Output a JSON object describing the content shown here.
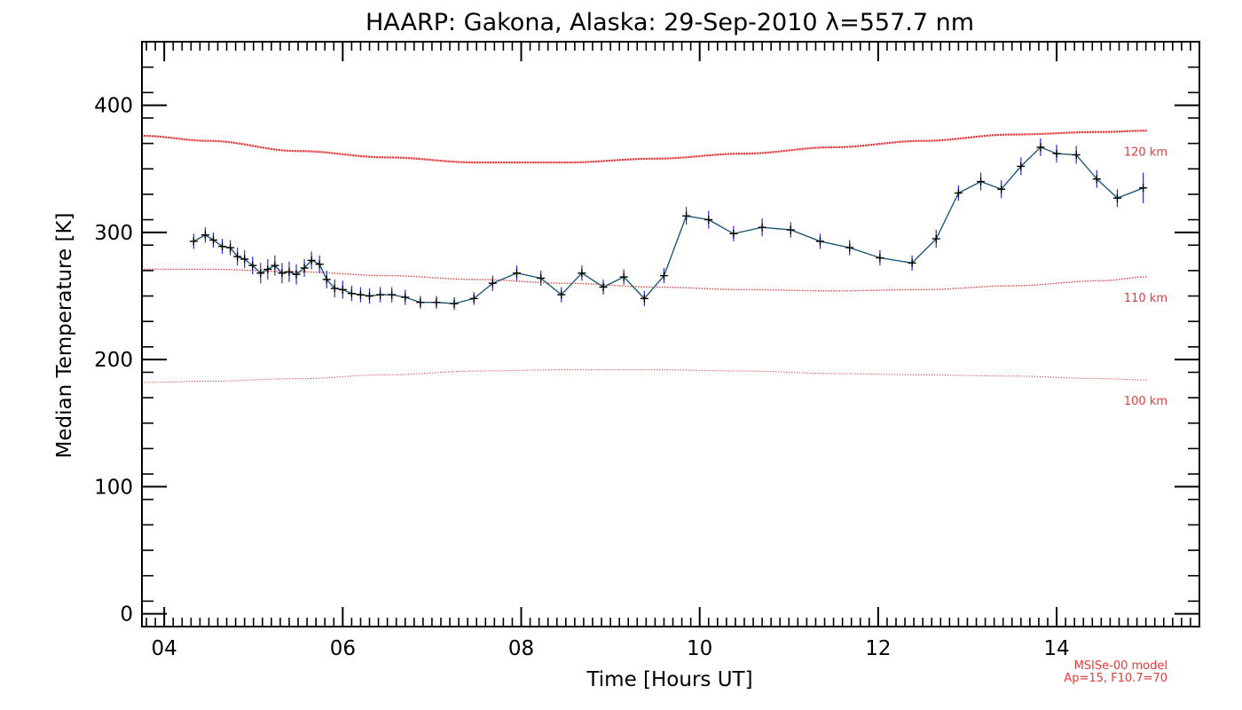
{
  "colors": {
    "model": "#e8383a",
    "data_line": "#1c5a78",
    "error_bar": "#2a2ad0",
    "marker": "#000000",
    "axis": "#000000"
  },
  "chart_data": {
    "type": "line",
    "title": "HAARP: Gakona,  Alaska: 29-Sep-2010 λ=557.7 nm",
    "xlabel": "Time [Hours UT]",
    "ylabel": "Median Temperature [K]",
    "xlim": [
      3.75,
      15.6
    ],
    "ylim": [
      -10,
      450
    ],
    "x_ticks": [
      4,
      6,
      8,
      10,
      12,
      14
    ],
    "x_tick_labels": [
      "04",
      "06",
      "08",
      "10",
      "12",
      "14"
    ],
    "y_ticks": [
      0,
      100,
      200,
      300,
      400
    ],
    "y_tick_labels": [
      "0",
      "100",
      "200",
      "300",
      "400"
    ],
    "grid": false,
    "model_note": [
      "MSISe-00 model",
      "Ap=15, F10.7=70"
    ],
    "series": [
      {
        "type": "line_with_errorbars",
        "x": [
          4.33,
          4.46,
          4.55,
          4.65,
          4.74,
          4.82,
          4.9,
          4.99,
          5.08,
          5.16,
          5.24,
          5.32,
          5.4,
          5.48,
          5.57,
          5.65,
          5.74,
          5.82,
          5.91,
          6.0,
          6.1,
          6.2,
          6.3,
          6.42,
          6.55,
          6.7,
          6.87,
          7.05,
          7.25,
          7.47,
          7.68,
          7.95,
          8.22,
          8.45,
          8.68,
          8.92,
          9.15,
          9.38,
          9.6,
          9.85,
          10.1,
          10.38,
          10.7,
          11.02,
          11.35,
          11.68,
          12.02,
          12.38,
          12.65,
          12.9,
          13.15,
          13.38,
          13.6,
          13.82,
          14.0,
          14.22,
          14.45,
          14.68,
          14.97
        ],
        "y": [
          293,
          298,
          294,
          289,
          288,
          281,
          279,
          274,
          268,
          271,
          274,
          268,
          269,
          267,
          272,
          278,
          275,
          263,
          256,
          255,
          252,
          251,
          250,
          251,
          251,
          249,
          245,
          245,
          244,
          248,
          260,
          268,
          264,
          251,
          268,
          257,
          265,
          248,
          266,
          313,
          310,
          299,
          304,
          302,
          293,
          288,
          280,
          276,
          295,
          331,
          340,
          334,
          352,
          367,
          362,
          361,
          342,
          327,
          335
        ],
        "err": [
          6,
          6,
          6,
          6,
          6,
          7,
          7,
          7,
          8,
          8,
          8,
          8,
          8,
          8,
          7,
          7,
          7,
          7,
          7,
          7,
          6,
          6,
          6,
          6,
          6,
          6,
          5,
          5,
          5,
          5,
          6,
          6,
          6,
          6,
          6,
          6,
          6,
          6,
          6,
          7,
          7,
          6,
          7,
          6,
          6,
          6,
          6,
          6,
          7,
          6,
          7,
          7,
          7,
          7,
          7,
          7,
          7,
          7,
          12
        ]
      },
      {
        "name": "120 km",
        "type": "model",
        "x": [
          3.75,
          4.5,
          5.5,
          6.5,
          7.5,
          8.5,
          9.5,
          10.5,
          11.5,
          12.5,
          13.5,
          14.5,
          15.0
        ],
        "y": [
          376,
          372,
          364,
          359,
          355,
          355,
          358,
          362,
          367,
          372,
          377,
          379,
          380
        ]
      },
      {
        "name": "110 km",
        "type": "model",
        "x": [
          3.75,
          4.5,
          5.5,
          6.5,
          7.5,
          8.5,
          9.5,
          10.5,
          11.5,
          12.5,
          13.5,
          14.5,
          15.0
        ],
        "y": [
          271,
          271,
          269,
          266,
          263,
          260,
          257,
          255,
          254,
          255,
          258,
          262,
          265
        ]
      },
      {
        "name": "100 km",
        "type": "model",
        "x": [
          3.75,
          4.5,
          5.5,
          6.5,
          7.5,
          8.5,
          9.5,
          10.5,
          11.5,
          12.5,
          13.5,
          14.5,
          15.0
        ],
        "y": [
          182,
          183,
          185,
          188,
          191,
          192,
          192,
          191,
          189,
          188,
          187,
          185,
          184
        ]
      }
    ]
  }
}
